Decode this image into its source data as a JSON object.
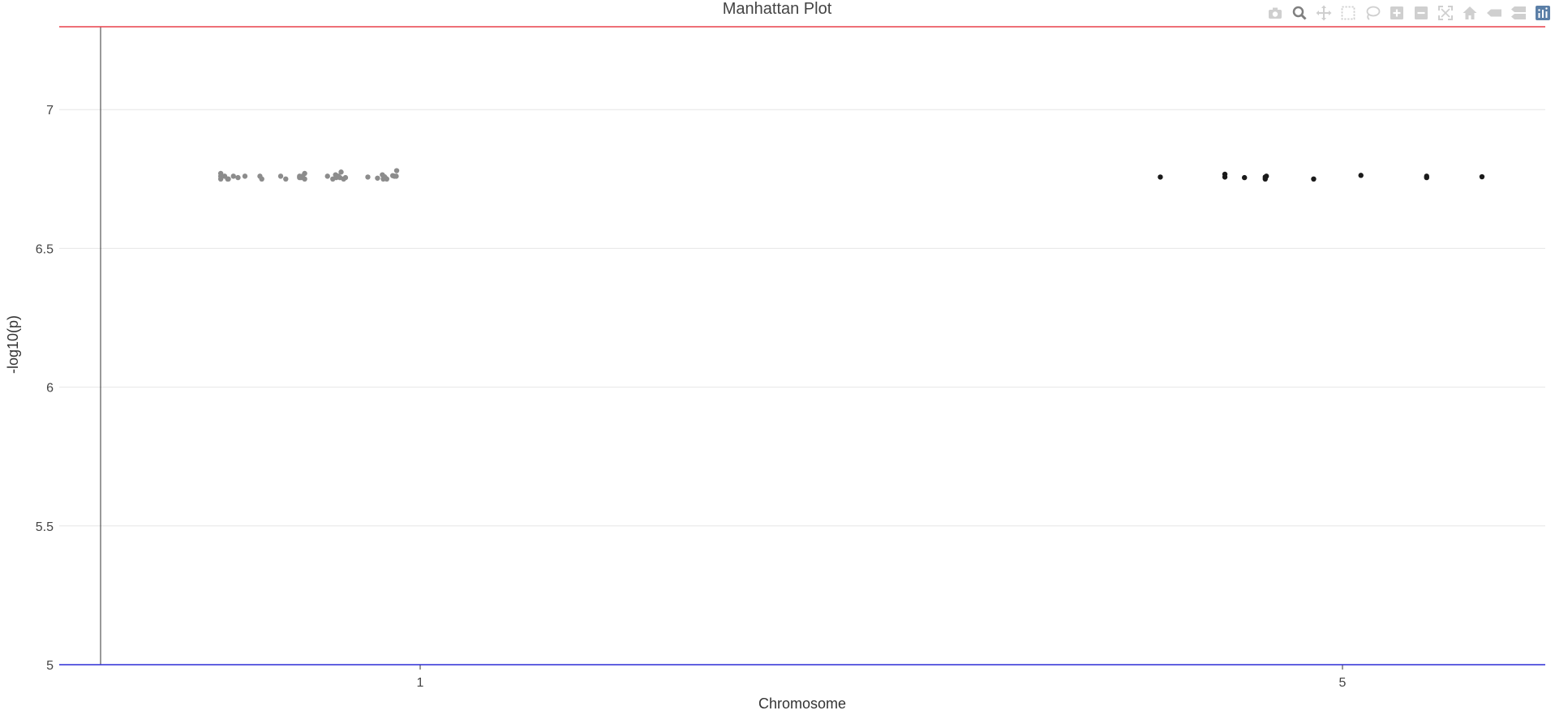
{
  "chart_data": {
    "type": "scatter",
    "title": "Manhattan Plot",
    "xlabel": "Chromosome",
    "ylabel": "-log10(p)",
    "x_tick_labels": [
      "1",
      "5"
    ],
    "y_ticks": [
      5,
      5.5,
      6,
      6.5,
      7
    ],
    "y_tick_labels": [
      "5",
      "5.5",
      "6",
      "6.5",
      "7"
    ],
    "ylim": [
      5,
      7.3
    ],
    "grid": true,
    "legend": "none",
    "colors": {
      "series_grey": "#8c8c8c",
      "series_black": "#1a1a1a",
      "top_line": "#e8414a",
      "bottom_line": "#2d2dd6",
      "grid": "#e6e6e6",
      "axis": "#333333"
    },
    "series": [
      {
        "color": "#8c8c8c",
        "points": [
          {
            "x": 0.135,
            "y": 6.77
          },
          {
            "x": 0.135,
            "y": 6.76
          },
          {
            "x": 0.135,
            "y": 6.75
          },
          {
            "x": 0.152,
            "y": 6.76
          },
          {
            "x": 0.165,
            "y": 6.75
          },
          {
            "x": 0.168,
            "y": 6.75
          },
          {
            "x": 0.19,
            "y": 6.76
          },
          {
            "x": 0.21,
            "y": 6.755
          },
          {
            "x": 0.24,
            "y": 6.76
          },
          {
            "x": 0.305,
            "y": 6.76
          },
          {
            "x": 0.313,
            "y": 6.75
          },
          {
            "x": 0.395,
            "y": 6.76
          },
          {
            "x": 0.417,
            "y": 6.75
          },
          {
            "x": 0.477,
            "y": 6.76
          },
          {
            "x": 0.477,
            "y": 6.755
          },
          {
            "x": 0.484,
            "y": 6.755
          },
          {
            "x": 0.49,
            "y": 6.76
          },
          {
            "x": 0.499,
            "y": 6.77
          },
          {
            "x": 0.499,
            "y": 6.75
          },
          {
            "x": 0.598,
            "y": 6.76
          },
          {
            "x": 0.621,
            "y": 6.75
          },
          {
            "x": 0.633,
            "y": 6.765
          },
          {
            "x": 0.636,
            "y": 6.755
          },
          {
            "x": 0.645,
            "y": 6.76
          },
          {
            "x": 0.652,
            "y": 6.755
          },
          {
            "x": 0.657,
            "y": 6.775
          },
          {
            "x": 0.668,
            "y": 6.75
          },
          {
            "x": 0.676,
            "y": 6.755
          },
          {
            "x": 0.773,
            "y": 6.757
          },
          {
            "x": 0.815,
            "y": 6.753
          },
          {
            "x": 0.836,
            "y": 6.765
          },
          {
            "x": 0.84,
            "y": 6.75
          },
          {
            "x": 0.845,
            "y": 6.758
          },
          {
            "x": 0.848,
            "y": 6.755
          },
          {
            "x": 0.855,
            "y": 6.75
          },
          {
            "x": 0.881,
            "y": 6.762
          },
          {
            "x": 0.888,
            "y": 6.76
          },
          {
            "x": 0.896,
            "y": 6.76
          },
          {
            "x": 0.898,
            "y": 6.78
          }
        ]
      },
      {
        "color": "#1a1a1a",
        "points": [
          {
            "x": 4.21,
            "y": 6.757
          },
          {
            "x": 4.49,
            "y": 6.767
          },
          {
            "x": 4.49,
            "y": 6.757
          },
          {
            "x": 4.575,
            "y": 6.755
          },
          {
            "x": 4.665,
            "y": 6.757
          },
          {
            "x": 4.665,
            "y": 6.75
          },
          {
            "x": 4.67,
            "y": 6.76
          },
          {
            "x": 4.875,
            "y": 6.75
          },
          {
            "x": 5.08,
            "y": 6.763
          },
          {
            "x": 5.365,
            "y": 6.76
          },
          {
            "x": 5.365,
            "y": 6.755
          },
          {
            "x": 5.605,
            "y": 6.758
          }
        ]
      }
    ],
    "threshold_lines": [
      7.3,
      5
    ]
  },
  "modebar": {
    "buttons": [
      {
        "name": "camera-icon",
        "active": false
      },
      {
        "name": "zoom-icon",
        "active": true
      },
      {
        "name": "pan-icon",
        "active": false
      },
      {
        "name": "box-select-icon",
        "active": false
      },
      {
        "name": "lasso-select-icon",
        "active": false
      },
      {
        "name": "zoom-in-icon",
        "active": false
      },
      {
        "name": "zoom-out-icon",
        "active": false
      },
      {
        "name": "autoscale-icon",
        "active": false
      },
      {
        "name": "reset-axes-icon",
        "active": false
      },
      {
        "name": "spike-lines-icon",
        "active": false
      },
      {
        "name": "compare-hover-icon",
        "active": false
      },
      {
        "name": "plotly-logo-icon",
        "active": false
      }
    ]
  }
}
